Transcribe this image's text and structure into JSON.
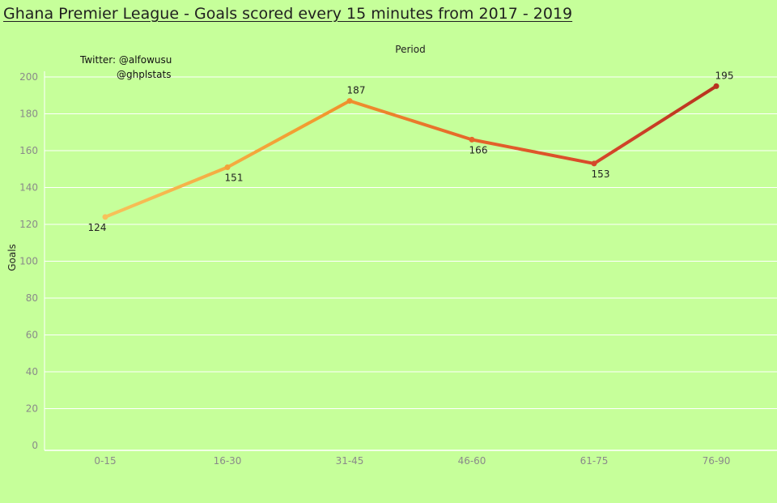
{
  "title": "Ghana Premier League - Goals scored every 15 minutes from 2017 - 2019",
  "annotations": {
    "twitter": "Twitter: @alfowusu",
    "handle": "@ghplstats"
  },
  "colors": {
    "background": "#c6ff9a",
    "gridline": "#ffffff",
    "line_gradient": [
      "#f7c25a",
      "#f29a2e",
      "#e5662a",
      "#d8482a",
      "#b8331f"
    ]
  },
  "chart_data": {
    "type": "line",
    "title": "Ghana Premier League - Goals scored every 15 minutes from 2017 - 2019",
    "xlabel": "Period",
    "ylabel": "Goals",
    "categories": [
      "0-15",
      "16-30",
      "31-45",
      "46-60",
      "61-75",
      "76-90"
    ],
    "values": [
      124,
      151,
      187,
      166,
      153,
      195
    ],
    "data_labels": [
      "124",
      "151",
      "187",
      "166",
      "153",
      "195"
    ],
    "ylim": [
      0,
      200
    ],
    "yticks": [
      0,
      20,
      40,
      60,
      80,
      100,
      120,
      140,
      160,
      180,
      200
    ],
    "grid": true,
    "legend": "none"
  }
}
